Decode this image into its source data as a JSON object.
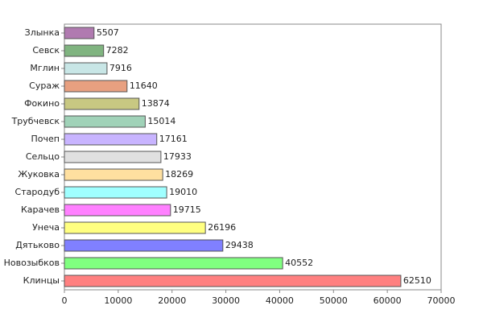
{
  "chart_data": {
    "type": "hbar",
    "categories": [
      "Злынка",
      "Севск",
      "Мглин",
      "Сураж",
      "Фокино",
      "Трубчевск",
      "Почеп",
      "Сельцо",
      "Жуковка",
      "Стародуб",
      "Карачев",
      "Унеча",
      "Дятьково",
      "Новозыбков",
      "Клинцы"
    ],
    "values": [
      5507,
      7282,
      7916,
      11640,
      13874,
      15014,
      17161,
      17933,
      18269,
      19010,
      19715,
      26196,
      29438,
      40552,
      62510
    ],
    "colors": [
      "#b07ab0",
      "#80b480",
      "#c8e6e6",
      "#e8a080",
      "#c8c882",
      "#a0d2b8",
      "#c8b4ff",
      "#e0e0e0",
      "#ffe0a0",
      "#a0ffff",
      "#ff80ff",
      "#ffff80",
      "#8080ff",
      "#80ff80",
      "#ff8080"
    ],
    "xlim": [
      0,
      70000
    ],
    "xticks": [
      0,
      10000,
      20000,
      30000,
      40000,
      50000,
      60000,
      70000
    ]
  }
}
